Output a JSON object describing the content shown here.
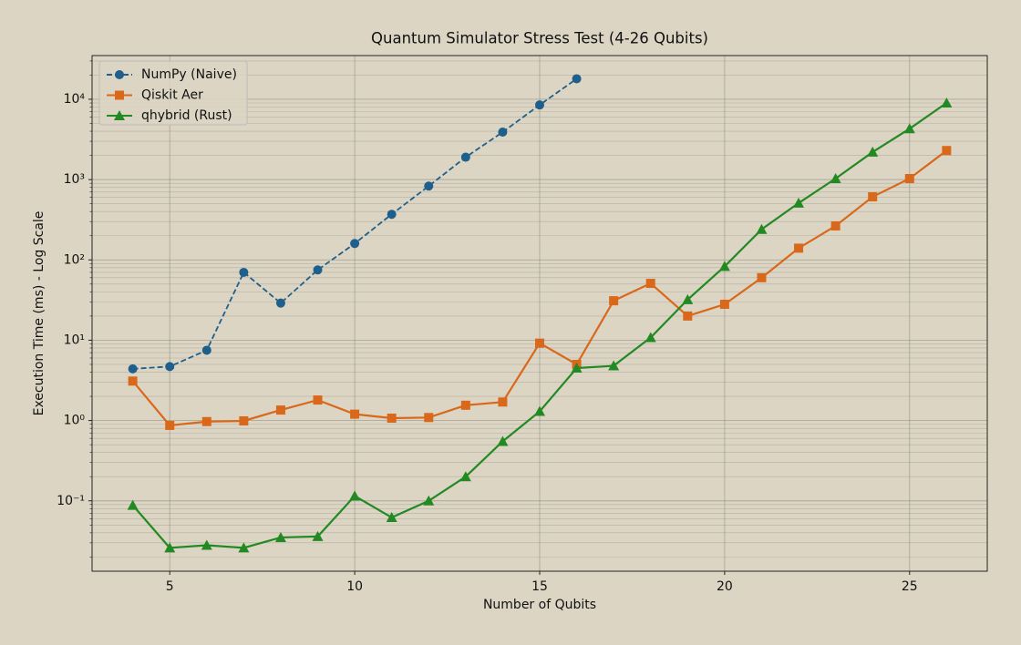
{
  "chart_data": {
    "type": "line",
    "title": "Quantum Simulator Stress Test (4-26 Qubits)",
    "x_label": "Number of Qubits",
    "y_label": "Execution Time (ms) - Log Scale",
    "x": [
      4,
      5,
      6,
      7,
      8,
      9,
      10,
      11,
      12,
      13,
      14,
      15,
      16,
      17,
      18,
      19,
      20,
      21,
      22,
      23,
      24,
      25,
      26
    ],
    "series": [
      {
        "name": "NumPy (Naive)",
        "color": "#1f5f8b",
        "marker": "circle",
        "dashed": true,
        "values": [
          4.4,
          4.7,
          7.5,
          70,
          29,
          75,
          160,
          370,
          830,
          1900,
          3900,
          8500,
          18000,
          null,
          null,
          null,
          null,
          null,
          null,
          null,
          null,
          null,
          null
        ]
      },
      {
        "name": "Qiskit Aer",
        "color": "#d9681a",
        "marker": "square",
        "dashed": false,
        "values": [
          3.1,
          0.87,
          0.97,
          0.99,
          1.35,
          1.8,
          1.2,
          1.07,
          1.09,
          1.55,
          1.7,
          9.2,
          5.0,
          31,
          51,
          20,
          28,
          60,
          140,
          265,
          610,
          1030,
          2300
        ]
      },
      {
        "name": "qhybrid (Rust)",
        "color": "#238a23",
        "marker": "triangle",
        "dashed": false,
        "values": [
          0.088,
          0.026,
          0.028,
          0.026,
          0.035,
          0.036,
          0.115,
          0.062,
          0.1,
          0.2,
          0.55,
          1.3,
          4.5,
          4.8,
          10.8,
          32,
          83,
          240,
          510,
          1030,
          2200,
          4300,
          9000
        ]
      }
    ],
    "xlim": [
      2.9,
      27.1
    ],
    "xticks": [
      5,
      10,
      15,
      20,
      25
    ],
    "ylim": [
      0.0133,
      35000
    ],
    "log_y": true,
    "yticks": [
      {
        "value": 0.1,
        "label": "10⁻¹"
      },
      {
        "value": 1,
        "label": "10⁰"
      },
      {
        "value": 10,
        "label": "10¹"
      },
      {
        "value": 100,
        "label": "10²"
      },
      {
        "value": 1000,
        "label": "10³"
      },
      {
        "value": 10000,
        "label": "10⁴"
      }
    ],
    "yminorticks": [
      0.02,
      0.03,
      0.04,
      0.05,
      0.06,
      0.07,
      0.08,
      0.09,
      0.2,
      0.3,
      0.4,
      0.5,
      0.6,
      0.7,
      0.8,
      0.9,
      2,
      3,
      4,
      5,
      6,
      7,
      8,
      9,
      20,
      30,
      40,
      50,
      60,
      70,
      80,
      90,
      200,
      300,
      400,
      500,
      600,
      700,
      800,
      900,
      2000,
      3000,
      4000,
      5000,
      6000,
      7000,
      8000,
      9000,
      20000,
      30000
    ],
    "grid": true,
    "legend": "upper-left"
  }
}
